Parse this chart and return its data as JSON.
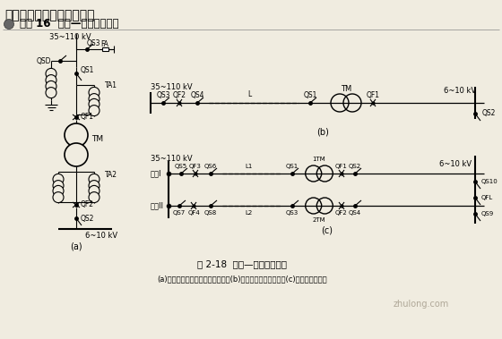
{
  "title": "一、高压供电系统主接线图",
  "subtitle": "图解 16  线路—变压器组接线",
  "fig_caption": "图 2-18  线路—变压器组接线",
  "fig_subcaption": "(a)一次侧采用断路器和隔离开关；(b)一次侧采用隔离开关；(c)双电源双变压器",
  "watermark": "zhulong.com",
  "bg_color": "#f0ece0",
  "line_color": "#000000",
  "text_color": "#000000"
}
